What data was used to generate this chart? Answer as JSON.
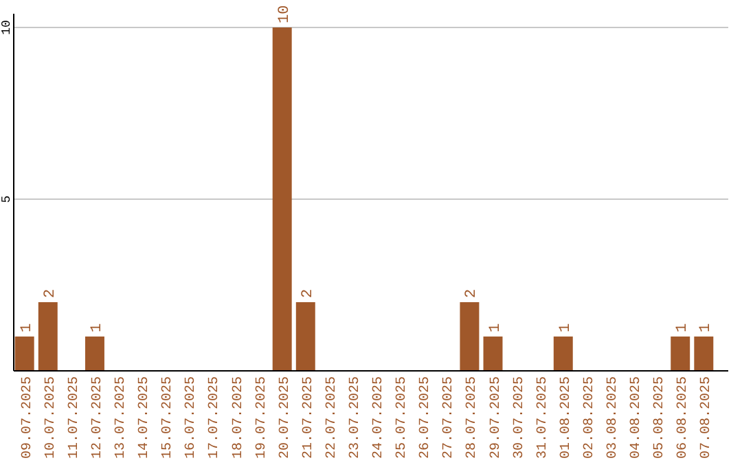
{
  "chart_data": {
    "type": "bar",
    "categories": [
      "09.07.2025",
      "10.07.2025",
      "11.07.2025",
      "12.07.2025",
      "13.07.2025",
      "14.07.2025",
      "15.07.2025",
      "16.07.2025",
      "17.07.2025",
      "18.07.2025",
      "19.07.2025",
      "20.07.2025",
      "21.07.2025",
      "22.07.2025",
      "23.07.2025",
      "24.07.2025",
      "25.07.2025",
      "26.07.2025",
      "27.07.2025",
      "28.07.2025",
      "29.07.2025",
      "30.07.2025",
      "31.07.2025",
      "01.08.2025",
      "02.08.2025",
      "03.08.2025",
      "04.08.2025",
      "05.08.2025",
      "06.08.2025",
      "07.08.2025"
    ],
    "values": [
      1,
      2,
      0,
      1,
      0,
      0,
      0,
      0,
      0,
      0,
      0,
      10,
      2,
      0,
      0,
      0,
      0,
      0,
      0,
      2,
      1,
      0,
      0,
      1,
      0,
      0,
      0,
      0,
      1,
      1
    ],
    "value_labels": [
      "1",
      "2",
      null,
      "1",
      null,
      null,
      null,
      null,
      null,
      null,
      null,
      "10",
      "2",
      null,
      null,
      null,
      null,
      null,
      null,
      "2",
      "1",
      null,
      null,
      "1",
      null,
      null,
      null,
      null,
      "1",
      "1"
    ],
    "color": "#a0582a",
    "ylim": [
      0,
      10.4
    ],
    "yticks": [
      5,
      10
    ],
    "grid": "y"
  }
}
